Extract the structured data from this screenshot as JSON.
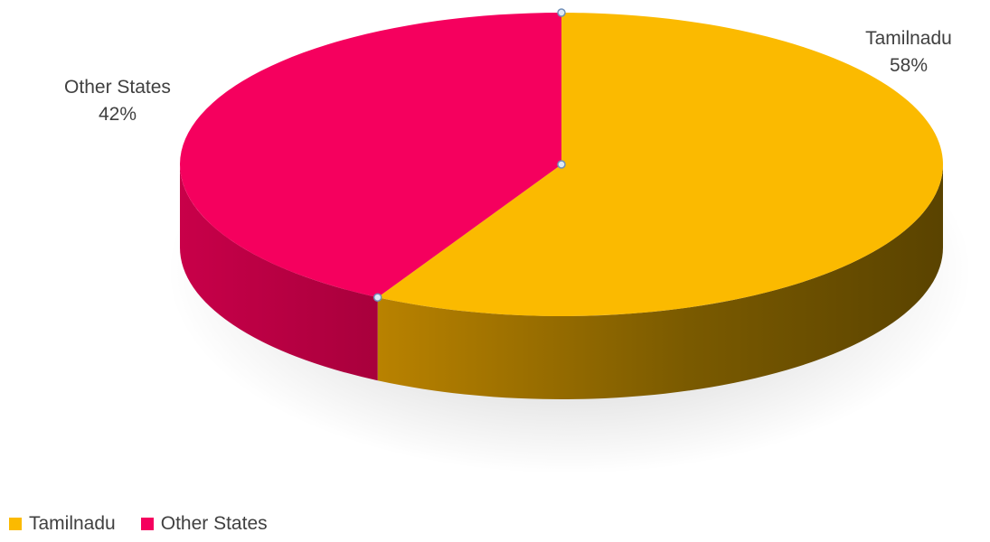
{
  "chart_data": {
    "type": "pie",
    "style": "3d",
    "categories": [
      "Tamilnadu",
      "Other States"
    ],
    "values": [
      58,
      42
    ],
    "data_labels": [
      "58%",
      "42%"
    ],
    "colors": [
      "#FBBA00",
      "#F5005E"
    ],
    "legend": "bottom-left",
    "title": ""
  }
}
